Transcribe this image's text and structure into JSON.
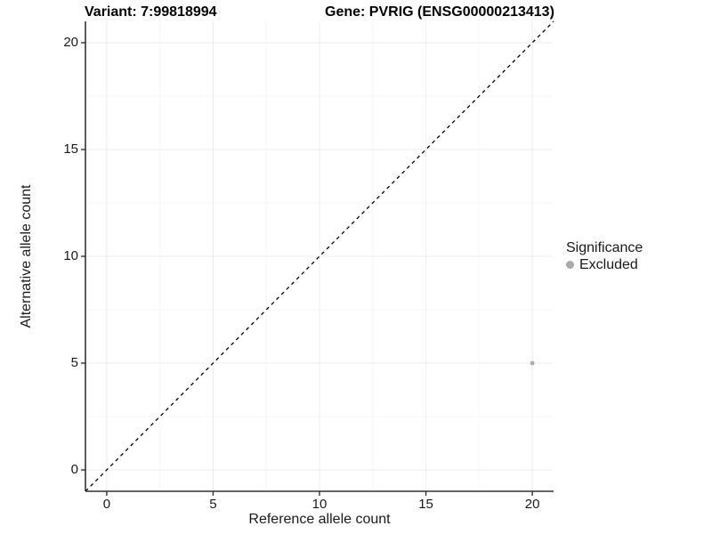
{
  "chart_data": {
    "type": "scatter",
    "title_parts": {
      "variant": "Variant: 7:99818994",
      "gene": "Gene: PVRIG (ENSG00000213413)"
    },
    "xlabel": "Reference allele count",
    "ylabel": "Alternative allele count",
    "xlim": [
      0,
      20
    ],
    "ylim": [
      0,
      20
    ],
    "x_ticks": [
      0,
      5,
      10,
      15,
      20
    ],
    "y_ticks": [
      0,
      5,
      10,
      15,
      20
    ],
    "minor_ticks": [
      2.5,
      7.5,
      12.5,
      17.5
    ],
    "grid": "major and minor, very light gray, on white background",
    "reference_line": {
      "kind": "identity y=x",
      "style": "dashed",
      "color": "#000000"
    },
    "series": [
      {
        "name": "Excluded",
        "color": "#aaaaaa",
        "marker": "circle",
        "points": [
          {
            "x": 20,
            "y": 5
          }
        ]
      }
    ],
    "legend": {
      "title": "Significance",
      "position": "right",
      "items": [
        {
          "label": "Excluded",
          "color": "#aaaaaa",
          "marker": "circle"
        }
      ]
    },
    "colors": {
      "axis": "#333333",
      "grid_major": "#ededed",
      "grid_minor": "#f6f6f6",
      "text": "#1a1a1a",
      "background": "#ffffff"
    }
  }
}
